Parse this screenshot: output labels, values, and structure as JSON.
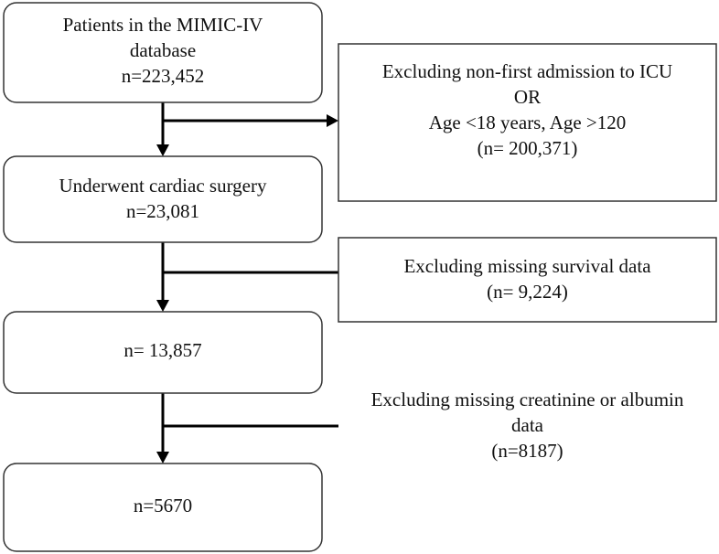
{
  "nodes": [
    {
      "lines": [
        "Patients in the MIMIC-IV",
        "database",
        "n=223,452"
      ]
    },
    {
      "lines": [
        "Underwent cardiac surgery",
        "n=23,081"
      ]
    },
    {
      "lines": [
        "n= 13,857"
      ]
    },
    {
      "lines": [
        "n=5670"
      ]
    }
  ],
  "exclusions": [
    {
      "lines": [
        "Excluding non-first admission to ICU",
        "OR",
        "Age <18 years, Age >120",
        "(n= 200,371)"
      ]
    },
    {
      "lines": [
        "Excluding missing survival data",
        "(n= 9,224)"
      ]
    },
    {
      "lines": [
        "Excluding missing creatinine or albumin",
        "data",
        "(n=8187)"
      ]
    }
  ]
}
